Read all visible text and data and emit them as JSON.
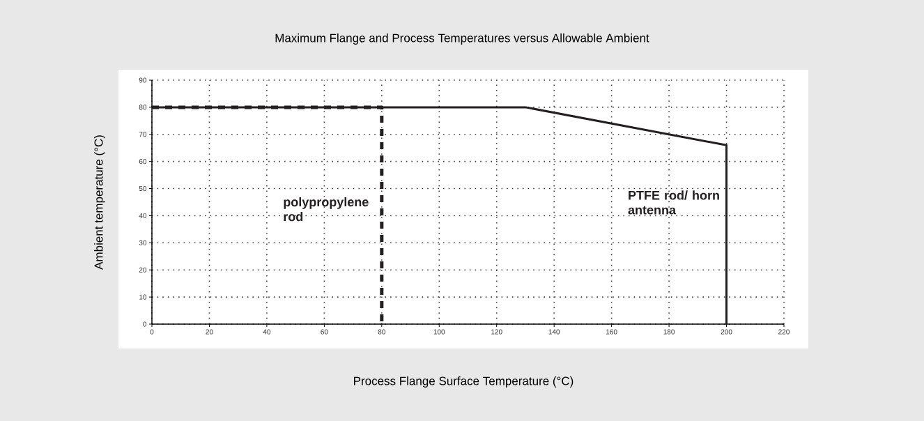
{
  "chart_data": {
    "type": "line",
    "title": "Maximum Flange and Process Temperatures versus Allowable Ambient",
    "xlabel": "Process Flange Surface Temperature (°C)",
    "ylabel": "Ambient temperature (°C)",
    "xlim": [
      0,
      220
    ],
    "ylim": [
      0,
      90
    ],
    "xticks": [
      0,
      20,
      40,
      60,
      80,
      100,
      120,
      140,
      160,
      180,
      200,
      220
    ],
    "yticks": [
      0,
      10,
      20,
      30,
      40,
      50,
      60,
      70,
      80,
      90
    ],
    "grid": true,
    "marker": "none",
    "series": [
      {
        "name": "PTFE rod/ horn antenna",
        "color": "#231f20",
        "line_style": "solid",
        "x": [
          0,
          130,
          200,
          200
        ],
        "values": [
          80,
          80,
          66,
          0
        ]
      },
      {
        "name": "polypropylene rod",
        "color": "#231f20",
        "line_style": "dashed",
        "x": [
          0,
          80,
          80
        ],
        "values": [
          80,
          80,
          0
        ]
      }
    ]
  }
}
